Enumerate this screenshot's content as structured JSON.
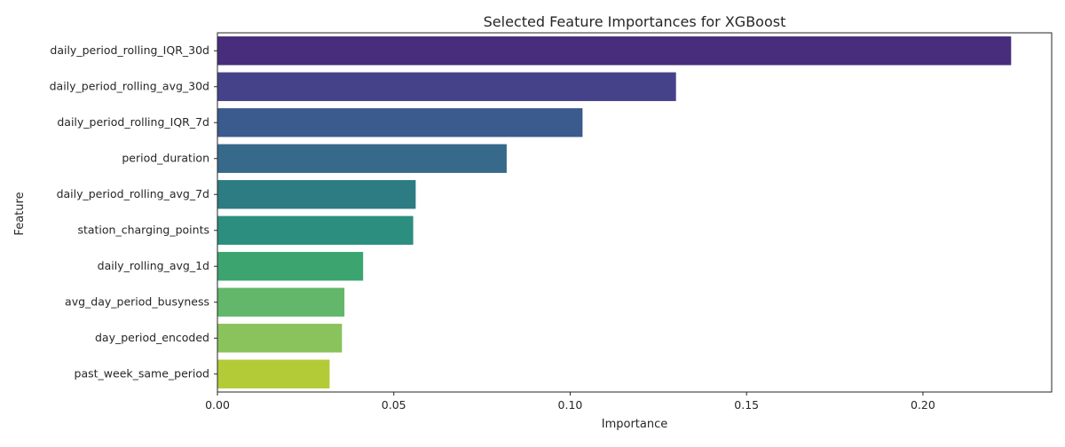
{
  "chart_data": {
    "type": "bar",
    "orientation": "horizontal",
    "title": "Selected Feature Importances for XGBoost",
    "xlabel": "Importance",
    "ylabel": "Feature",
    "xlim": [
      0,
      0.2365
    ],
    "xticks": [
      0.0,
      0.05,
      0.1,
      0.15,
      0.2
    ],
    "xtick_labels": [
      "0.00",
      "0.05",
      "0.10",
      "0.15",
      "0.20"
    ],
    "grid": false,
    "legend": "none",
    "categories": [
      "daily_period_rolling_IQR_30d",
      "daily_period_rolling_avg_30d",
      "daily_period_rolling_IQR_7d",
      "period_duration",
      "daily_period_rolling_avg_7d",
      "station_charging_points",
      "daily_rolling_avg_1d",
      "avg_day_period_busyness",
      "day_period_encoded",
      "past_week_same_period"
    ],
    "values": [
      0.225,
      0.13,
      0.1035,
      0.082,
      0.0562,
      0.0555,
      0.0413,
      0.036,
      0.0353,
      0.0318
    ],
    "colors": [
      "#472d7b",
      "#46428a",
      "#3b5a8d",
      "#37698a",
      "#2d7b83",
      "#2b8e7f",
      "#3ca46f",
      "#62b76a",
      "#8ac35b",
      "#b3cb37"
    ]
  }
}
